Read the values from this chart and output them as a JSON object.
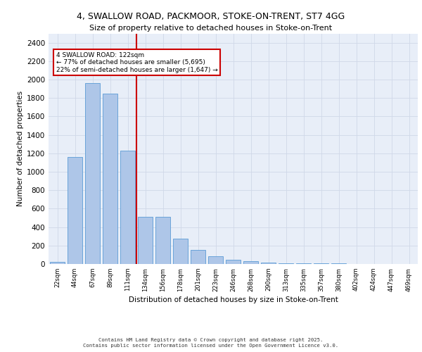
{
  "title1": "4, SWALLOW ROAD, PACKMOOR, STOKE-ON-TRENT, ST7 4GG",
  "title2": "Size of property relative to detached houses in Stoke-on-Trent",
  "xlabel": "Distribution of detached houses by size in Stoke-on-Trent",
  "ylabel": "Number of detached properties",
  "categories": [
    "22sqm",
    "44sqm",
    "67sqm",
    "89sqm",
    "111sqm",
    "134sqm",
    "156sqm",
    "178sqm",
    "201sqm",
    "223sqm",
    "246sqm",
    "268sqm",
    "290sqm",
    "313sqm",
    "335sqm",
    "357sqm",
    "380sqm",
    "402sqm",
    "424sqm",
    "447sqm",
    "469sqm"
  ],
  "values": [
    25,
    1160,
    1960,
    1850,
    1230,
    515,
    510,
    275,
    155,
    85,
    45,
    32,
    18,
    10,
    7,
    5,
    4,
    3,
    3,
    3,
    3
  ],
  "bar_color": "#aec6e8",
  "bar_edge_color": "#5b9bd5",
  "vline_x": 4.5,
  "vline_color": "#cc0000",
  "annotation_text": "4 SWALLOW ROAD: 122sqm\n← 77% of detached houses are smaller (5,695)\n22% of semi-detached houses are larger (1,647) →",
  "annotation_box_color": "#cc0000",
  "ylim": [
    0,
    2500
  ],
  "yticks": [
    0,
    200,
    400,
    600,
    800,
    1000,
    1200,
    1400,
    1600,
    1800,
    2000,
    2200,
    2400
  ],
  "grid_color": "#d0d8e8",
  "background_color": "#e8eef8",
  "footer1": "Contains HM Land Registry data © Crown copyright and database right 2025.",
  "footer2": "Contains public sector information licensed under the Open Government Licence v3.0."
}
